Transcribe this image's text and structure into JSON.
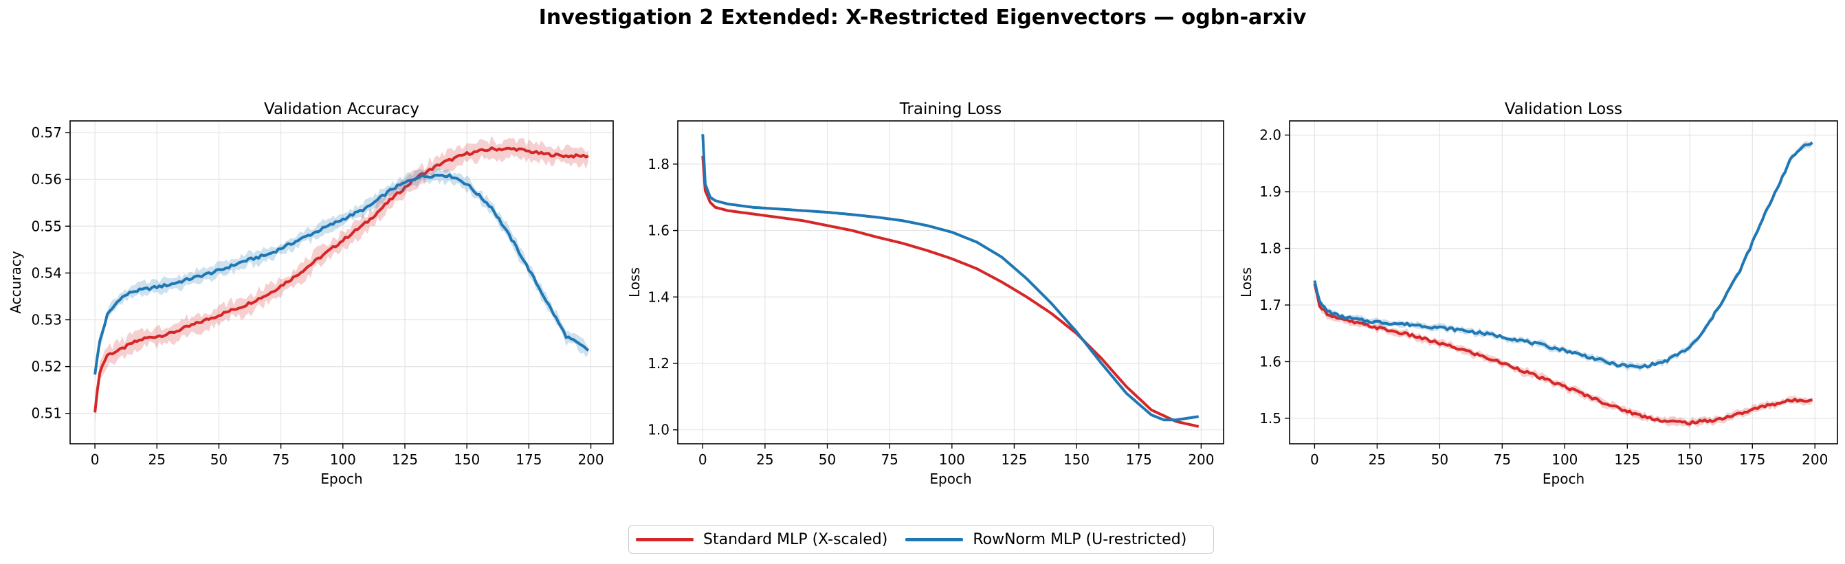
{
  "figure": {
    "title": "Investigation 2 Extended: X-Restricted Eigenvectors — ogbn-arxiv"
  },
  "colors": {
    "standard": "#d62728",
    "rownorm": "#1f77b4",
    "grid": "#e5e5e5"
  },
  "legend": [
    {
      "label": "Standard MLP (X-scaled)",
      "color": "#d62728"
    },
    {
      "label": "RowNorm MLP (U-restricted)",
      "color": "#1f77b4"
    }
  ],
  "chart_data": [
    {
      "type": "line",
      "title": "Validation Accuracy",
      "xlabel": "Epoch",
      "ylabel": "Accuracy",
      "xlim": [
        -10,
        209
      ],
      "ylim": [
        0.5035,
        0.5725
      ],
      "xticks": [
        0,
        25,
        50,
        75,
        100,
        125,
        150,
        175,
        200
      ],
      "yticks": [
        0.51,
        0.52,
        0.53,
        0.54,
        0.55,
        0.56,
        0.57
      ],
      "ytick_labels": [
        "0.51",
        "0.52",
        "0.53",
        "0.54",
        "0.55",
        "0.56",
        "0.57"
      ],
      "grid": true,
      "series": [
        {
          "name": "Standard MLP (X-scaled)",
          "color": "#d62728",
          "x": [
            0,
            2,
            5,
            10,
            15,
            20,
            25,
            30,
            40,
            50,
            60,
            70,
            80,
            90,
            100,
            110,
            120,
            130,
            140,
            150,
            160,
            170,
            180,
            190,
            199
          ],
          "y": [
            0.5105,
            0.519,
            0.5225,
            0.5235,
            0.525,
            0.526,
            0.5265,
            0.527,
            0.529,
            0.531,
            0.533,
            0.5355,
            0.539,
            0.543,
            0.547,
            0.551,
            0.556,
            0.5605,
            0.5635,
            0.5655,
            0.5665,
            0.5665,
            0.5655,
            0.565,
            0.565
          ],
          "band": 0.0018
        },
        {
          "name": "RowNorm MLP (U-restricted)",
          "color": "#1f77b4",
          "x": [
            0,
            2,
            5,
            10,
            15,
            20,
            25,
            30,
            40,
            50,
            60,
            70,
            80,
            90,
            100,
            110,
            120,
            130,
            140,
            145,
            150,
            160,
            170,
            180,
            190,
            199
          ],
          "y": [
            0.5185,
            0.5255,
            0.531,
            0.5345,
            0.536,
            0.5365,
            0.537,
            0.5375,
            0.539,
            0.5405,
            0.5425,
            0.544,
            0.5465,
            0.549,
            0.5515,
            0.554,
            0.558,
            0.5605,
            0.561,
            0.5605,
            0.559,
            0.554,
            0.5455,
            0.536,
            0.5265,
            0.5235
          ],
          "band": 0.0013
        }
      ]
    },
    {
      "type": "line",
      "title": "Training Loss",
      "xlabel": "Epoch",
      "ylabel": "Loss",
      "xlim": [
        -10,
        209
      ],
      "ylim": [
        0.958,
        1.93
      ],
      "xticks": [
        0,
        25,
        50,
        75,
        100,
        125,
        150,
        175,
        200
      ],
      "yticks": [
        1.0,
        1.2,
        1.4,
        1.6,
        1.8
      ],
      "ytick_labels": [
        "1.0",
        "1.2",
        "1.4",
        "1.6",
        "1.8"
      ],
      "grid": true,
      "series": [
        {
          "name": "Standard MLP (X-scaled)",
          "color": "#d62728",
          "x": [
            0,
            1,
            3,
            5,
            10,
            20,
            30,
            40,
            50,
            60,
            70,
            80,
            90,
            100,
            110,
            120,
            130,
            140,
            150,
            160,
            170,
            180,
            190,
            199
          ],
          "y": [
            1.825,
            1.72,
            1.685,
            1.67,
            1.66,
            1.65,
            1.64,
            1.63,
            1.615,
            1.6,
            1.58,
            1.562,
            1.54,
            1.515,
            1.485,
            1.445,
            1.4,
            1.35,
            1.29,
            1.215,
            1.13,
            1.06,
            1.025,
            1.01
          ],
          "band": 0
        },
        {
          "name": "RowNorm MLP (U-restricted)",
          "color": "#1f77b4",
          "x": [
            0,
            1,
            3,
            5,
            10,
            20,
            30,
            40,
            50,
            60,
            70,
            80,
            90,
            100,
            110,
            120,
            130,
            140,
            150,
            160,
            170,
            180,
            185,
            190,
            199
          ],
          "y": [
            1.89,
            1.74,
            1.7,
            1.69,
            1.68,
            1.67,
            1.665,
            1.66,
            1.655,
            1.648,
            1.64,
            1.63,
            1.615,
            1.595,
            1.565,
            1.52,
            1.455,
            1.38,
            1.295,
            1.2,
            1.11,
            1.045,
            1.03,
            1.03,
            1.04
          ],
          "band": 0
        }
      ]
    },
    {
      "type": "line",
      "title": "Validation Loss",
      "xlabel": "Epoch",
      "ylabel": "Loss",
      "xlim": [
        -10,
        209
      ],
      "ylim": [
        1.455,
        2.025
      ],
      "xticks": [
        0,
        25,
        50,
        75,
        100,
        125,
        150,
        175,
        200
      ],
      "yticks": [
        1.5,
        1.6,
        1.7,
        1.8,
        1.9,
        2.0
      ],
      "ytick_labels": [
        "1.5",
        "1.6",
        "1.7",
        "1.8",
        "1.9",
        "2.0"
      ],
      "grid": true,
      "series": [
        {
          "name": "Standard MLP (X-scaled)",
          "color": "#d62728",
          "x": [
            0,
            2,
            5,
            10,
            20,
            30,
            40,
            50,
            60,
            70,
            80,
            90,
            100,
            110,
            120,
            130,
            140,
            150,
            160,
            170,
            180,
            190,
            199
          ],
          "y": [
            1.735,
            1.7,
            1.685,
            1.675,
            1.665,
            1.655,
            1.645,
            1.632,
            1.62,
            1.605,
            1.59,
            1.572,
            1.556,
            1.538,
            1.52,
            1.505,
            1.495,
            1.492,
            1.497,
            1.508,
            1.522,
            1.531,
            1.533
          ],
          "band": 0.006
        },
        {
          "name": "RowNorm MLP (U-restricted)",
          "color": "#1f77b4",
          "x": [
            0,
            2,
            5,
            10,
            20,
            30,
            40,
            50,
            60,
            70,
            80,
            90,
            100,
            110,
            120,
            130,
            140,
            150,
            155,
            160,
            170,
            180,
            190,
            195,
            199
          ],
          "y": [
            1.745,
            1.705,
            1.69,
            1.68,
            1.672,
            1.668,
            1.665,
            1.66,
            1.655,
            1.648,
            1.64,
            1.63,
            1.62,
            1.608,
            1.595,
            1.59,
            1.6,
            1.625,
            1.65,
            1.685,
            1.76,
            1.86,
            1.955,
            1.98,
            1.988
          ],
          "band": 0.005
        }
      ]
    }
  ]
}
